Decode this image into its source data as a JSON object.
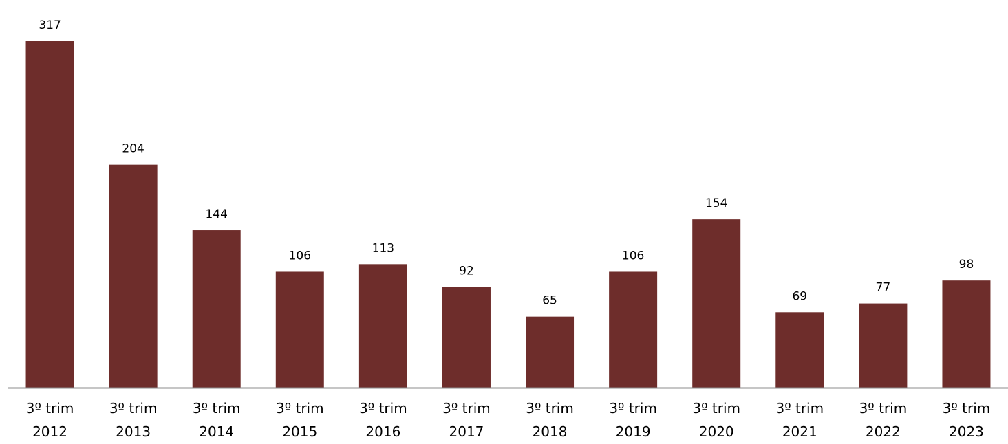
{
  "chart_data": {
    "type": "bar",
    "categories": [
      [
        "3º trim",
        "2012"
      ],
      [
        "3º trim",
        "2013"
      ],
      [
        "3º trim",
        "2014"
      ],
      [
        "3º trim",
        "2015"
      ],
      [
        "3º trim",
        "2016"
      ],
      [
        "3º trim",
        "2017"
      ],
      [
        "3º trim",
        "2018"
      ],
      [
        "3º trim",
        "2019"
      ],
      [
        "3º trim",
        "2020"
      ],
      [
        "3º trim",
        "2021"
      ],
      [
        "3º trim",
        "2022"
      ],
      [
        "3º trim",
        "2023"
      ]
    ],
    "values": [
      317,
      204,
      144,
      106,
      113,
      92,
      65,
      106,
      154,
      69,
      77,
      98
    ],
    "data_labels": [
      "317",
      "204",
      "144",
      "106",
      "113",
      "92",
      "65",
      "106",
      "154",
      "69",
      "77",
      "98"
    ],
    "ylim": [
      0,
      317
    ],
    "grid": false,
    "legend": "none",
    "colors": {
      "bar": "#6e2d2b",
      "axis": "#8c8c8c",
      "text": "#000000"
    }
  }
}
